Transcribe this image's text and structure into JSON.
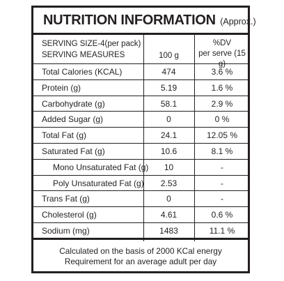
{
  "title": {
    "main": "NUTRITION INFORMATION",
    "note": "(Approx.)"
  },
  "header": {
    "serving_size": "SERVING SIZE-4(per pack)",
    "serving_measures": "SERVING MEASURES",
    "per_100g": "100 g",
    "dv_line1": "%DV",
    "dv_line2": "per serve (15 g)"
  },
  "rows": [
    {
      "name": "Total Calories (KCAL)",
      "value": "474",
      "dv": "3.6 %",
      "sub": false
    },
    {
      "name": "Protein (g)",
      "value": "5.19",
      "dv": "1.6 %",
      "sub": false
    },
    {
      "name": "Carbohydrate (g)",
      "value": "58.1",
      "dv": "2.9 %",
      "sub": false
    },
    {
      "name": "Added Sugar (g)",
      "value": "0",
      "dv": "0 %",
      "sub": false
    },
    {
      "name": "Total Fat (g)",
      "value": "24.1",
      "dv": "12.05 %",
      "sub": false
    },
    {
      "name": "Saturated Fat (g)",
      "value": "10.6",
      "dv": "8.1 %",
      "sub": false
    },
    {
      "name": "Mono Unsaturated Fat (g)",
      "value": "10",
      "dv": "-",
      "sub": true
    },
    {
      "name": "Poly Unsaturated Fat (g)",
      "value": "2.53",
      "dv": "-",
      "sub": true
    },
    {
      "name": "Trans Fat (g)",
      "value": "0",
      "dv": "-",
      "sub": false
    },
    {
      "name": "Cholesterol (g)",
      "value": "4.61",
      "dv": "0.6 %",
      "sub": false
    },
    {
      "name": "Sodium (mg)",
      "value": "1483",
      "dv": "11.1 %",
      "sub": false
    }
  ],
  "footer": {
    "line1": "Calculated on the basis of 2000 KCal energy",
    "line2": "Requirement for an average adult per day"
  }
}
